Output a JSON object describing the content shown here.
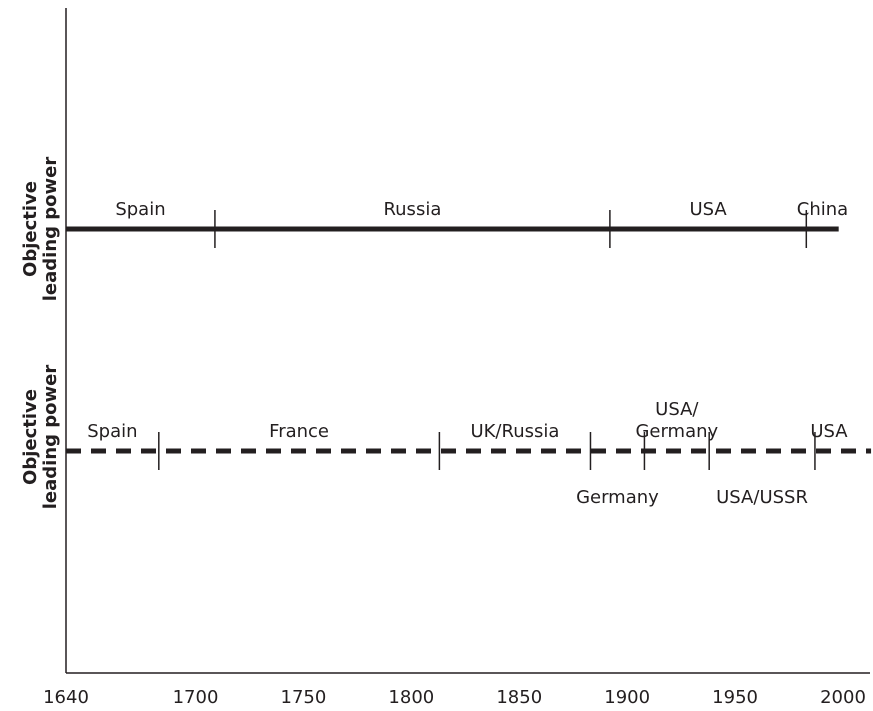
{
  "chart_data": {
    "type": "timeline",
    "x_range": [
      1640,
      2000
    ],
    "x_ticks": [
      1640,
      1700,
      1750,
      1800,
      1850,
      1900,
      1950,
      2000
    ],
    "rows": [
      {
        "ylabel": [
          "Objective",
          "leading power"
        ],
        "line_style": "solid",
        "line_end": 1998,
        "dividers": [
          1709,
          1892,
          1983
        ],
        "segments": [
          {
            "label": [
              "Spain"
            ],
            "start": 1640,
            "end": 1709,
            "position": "above"
          },
          {
            "label": [
              "Russia"
            ],
            "start": 1709,
            "end": 1892,
            "position": "above"
          },
          {
            "label": [
              "USA"
            ],
            "start": 1892,
            "end": 1983,
            "position": "above"
          },
          {
            "label": [
              "China"
            ],
            "start": 1983,
            "end": 1998,
            "position": "above"
          }
        ]
      },
      {
        "ylabel": [
          "Objective",
          "leading power"
        ],
        "line_style": "dashed",
        "line_end": 2013,
        "dividers": [
          1683,
          1813,
          1883,
          1908,
          1938,
          1987
        ],
        "segments": [
          {
            "label": [
              "Spain"
            ],
            "start": 1640,
            "end": 1683,
            "position": "above"
          },
          {
            "label": [
              "France"
            ],
            "start": 1683,
            "end": 1813,
            "position": "above"
          },
          {
            "label": [
              "UK/Russia"
            ],
            "start": 1813,
            "end": 1883,
            "position": "above"
          },
          {
            "label": [
              "Germany"
            ],
            "start": 1883,
            "end": 1908,
            "position": "below"
          },
          {
            "label": [
              "USA/",
              "Germany"
            ],
            "start": 1908,
            "end": 1938,
            "position": "above"
          },
          {
            "label": [
              "USA/USSR"
            ],
            "start": 1938,
            "end": 1987,
            "position": "below"
          },
          {
            "label": [
              "USA"
            ],
            "start": 1987,
            "end": 2000,
            "position": "above"
          }
        ]
      }
    ]
  }
}
